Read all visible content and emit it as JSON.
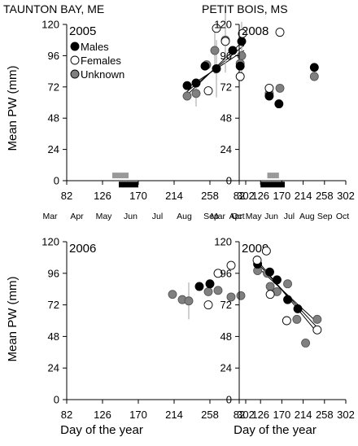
{
  "figure": {
    "ylabel": "Mean PW (mm)",
    "xlabel": "Day of the year",
    "months": [
      "Mar",
      "Apr",
      "May",
      "Jun",
      "Jul",
      "Aug",
      "Sep",
      "Oct"
    ],
    "legend": [
      {
        "label": "Males",
        "fill": "#000000"
      },
      {
        "label": "Females",
        "fill": "#ffffff"
      },
      {
        "label": "Unknown",
        "fill": "#808080"
      }
    ]
  },
  "chart_data": [
    {
      "type": "scatter",
      "site": "TAUNTON BAY, ME",
      "year": "2005",
      "xlim": [
        82,
        302
      ],
      "ylim": [
        0,
        120
      ],
      "xticks": [
        82,
        126,
        170,
        214,
        258,
        302
      ],
      "yticks": [
        0,
        24,
        48,
        72,
        96,
        120
      ],
      "show_months": true,
      "legend": true,
      "bars": [
        {
          "x1": 138,
          "x2": 158,
          "y": 4,
          "color": "#999999"
        },
        {
          "x1": 146,
          "x2": 170,
          "y": -3,
          "color": "#000000"
        }
      ],
      "series": [
        {
          "name": "Males",
          "fill": "#000000",
          "points": [
            {
              "x": 230,
              "y": 73
            },
            {
              "x": 241,
              "y": 75
            },
            {
              "x": 252,
              "y": 88
            },
            {
              "x": 266,
              "y": 86,
              "err": 22
            },
            {
              "x": 286,
              "y": 100
            },
            {
              "x": 297,
              "y": 107,
              "err": 15
            }
          ]
        },
        {
          "name": "Females",
          "fill": "#ffffff",
          "points": [
            {
              "x": 256,
              "y": 69
            },
            {
              "x": 266,
              "y": 117
            },
            {
              "x": 277,
              "y": 107
            },
            {
              "x": 298,
              "y": 113
            }
          ]
        },
        {
          "name": "Unknown",
          "fill": "#808080",
          "points": [
            {
              "x": 230,
              "y": 65
            },
            {
              "x": 241,
              "y": 67,
              "err": 10
            },
            {
              "x": 254,
              "y": 89
            },
            {
              "x": 264,
              "y": 100,
              "err": 18
            },
            {
              "x": 277,
              "y": 108,
              "err": 25
            },
            {
              "x": 297,
              "y": 96,
              "err": 20
            }
          ]
        }
      ],
      "trend_lines": [
        {
          "x1": 227,
          "y1": 67,
          "x2": 300,
          "y2": 104
        },
        {
          "x1": 227,
          "y1": 70,
          "x2": 300,
          "y2": 100
        },
        {
          "x1": 227,
          "y1": 64,
          "x2": 300,
          "y2": 108
        }
      ]
    },
    {
      "type": "scatter",
      "site": "PETIT BOIS, MS",
      "year": "2008",
      "xlim": [
        82,
        302
      ],
      "ylim": [
        0,
        120
      ],
      "xticks": [
        82,
        126,
        170,
        214,
        258,
        302
      ],
      "yticks": [
        0,
        24,
        48,
        72,
        96,
        120
      ],
      "show_months": true,
      "legend": false,
      "bars": [
        {
          "x1": 140,
          "x2": 164,
          "y": 4,
          "color": "#999999"
        },
        {
          "x1": 126,
          "x2": 176,
          "y": -3,
          "color": "#000000"
        }
      ],
      "series": [
        {
          "name": "Males",
          "fill": "#000000",
          "points": [
            {
              "x": 84,
              "y": 88
            },
            {
              "x": 144,
              "y": 65
            },
            {
              "x": 164,
              "y": 59
            },
            {
              "x": 237,
              "y": 87
            }
          ]
        },
        {
          "name": "Females",
          "fill": "#ffffff",
          "points": [
            {
              "x": 84,
              "y": 80
            },
            {
              "x": 144,
              "y": 71
            },
            {
              "x": 166,
              "y": 114
            }
          ]
        },
        {
          "name": "Unknown",
          "fill": "#808080",
          "points": [
            {
              "x": 84,
              "y": 90
            },
            {
              "x": 144,
              "y": 67
            },
            {
              "x": 166,
              "y": 71
            },
            {
              "x": 237,
              "y": 80
            }
          ]
        }
      ],
      "trend_lines": []
    },
    {
      "type": "scatter",
      "site": "",
      "year": "2006",
      "xlim": [
        82,
        302
      ],
      "ylim": [
        0,
        120
      ],
      "xticks": [
        82,
        126,
        170,
        214,
        258,
        302
      ],
      "yticks": [
        0,
        24,
        48,
        72,
        96,
        120
      ],
      "show_months": false,
      "legend": false,
      "bars": [],
      "series": [
        {
          "name": "Males",
          "fill": "#000000",
          "points": [
            {
              "x": 245,
              "y": 86
            },
            {
              "x": 258,
              "y": 88
            }
          ]
        },
        {
          "name": "Females",
          "fill": "#ffffff",
          "points": [
            {
              "x": 256,
              "y": 72
            },
            {
              "x": 268,
              "y": 96
            },
            {
              "x": 284,
              "y": 102
            }
          ]
        },
        {
          "name": "Unknown",
          "fill": "#808080",
          "points": [
            {
              "x": 212,
              "y": 80
            },
            {
              "x": 224,
              "y": 76
            },
            {
              "x": 232,
              "y": 75,
              "err": 14
            },
            {
              "x": 256,
              "y": 82
            },
            {
              "x": 268,
              "y": 83
            },
            {
              "x": 284,
              "y": 78
            },
            {
              "x": 296,
              "y": 79
            }
          ]
        }
      ],
      "trend_lines": []
    },
    {
      "type": "scatter",
      "site": "",
      "year": "2009",
      "xlim": [
        82,
        302
      ],
      "ylim": [
        0,
        120
      ],
      "xticks": [
        82,
        126,
        170,
        214,
        258,
        302
      ],
      "yticks": [
        0,
        24,
        48,
        72,
        96,
        120
      ],
      "show_months": false,
      "legend": false,
      "bars": [],
      "series": [
        {
          "name": "Males",
          "fill": "#000000",
          "points": [
            {
              "x": 120,
              "y": 103
            },
            {
              "x": 145,
              "y": 97
            },
            {
              "x": 160,
              "y": 91
            },
            {
              "x": 182,
              "y": 76
            },
            {
              "x": 203,
              "y": 69
            }
          ]
        },
        {
          "name": "Females",
          "fill": "#ffffff",
          "points": [
            {
              "x": 119,
              "y": 106
            },
            {
              "x": 138,
              "y": 113
            },
            {
              "x": 146,
              "y": 80
            },
            {
              "x": 180,
              "y": 60
            },
            {
              "x": 243,
              "y": 53
            }
          ]
        },
        {
          "name": "Unknown",
          "fill": "#808080",
          "points": [
            {
              "x": 120,
              "y": 98
            },
            {
              "x": 140,
              "y": 96
            },
            {
              "x": 146,
              "y": 86
            },
            {
              "x": 160,
              "y": 82
            },
            {
              "x": 182,
              "y": 88
            },
            {
              "x": 201,
              "y": 61
            },
            {
              "x": 219,
              "y": 43
            },
            {
              "x": 243,
              "y": 61
            }
          ]
        }
      ],
      "trend_lines": [
        {
          "x1": 119,
          "y1": 104,
          "x2": 245,
          "y2": 54
        },
        {
          "x1": 119,
          "y1": 101,
          "x2": 245,
          "y2": 58
        },
        {
          "x1": 119,
          "y1": 106,
          "x2": 245,
          "y2": 50
        }
      ]
    }
  ]
}
